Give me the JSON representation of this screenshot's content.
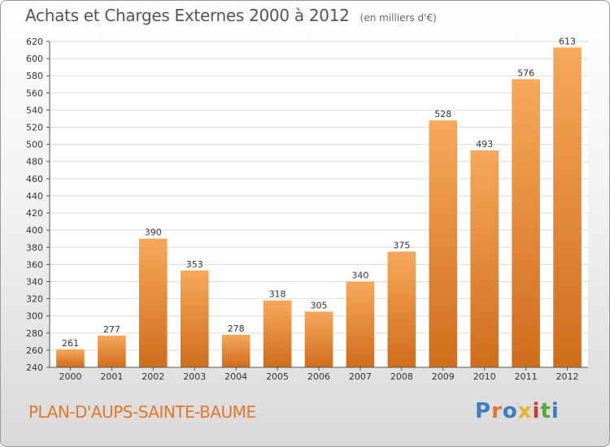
{
  "title": "Achats et Charges Externes 2000 à 2012",
  "subtitle": "(en milliers d'€)",
  "commune": "PLAN-D'AUPS-SAINTE-BAUME",
  "brand": "Proxiti",
  "colors": {
    "bar_light": "#f7a85a",
    "bar_dark": "#cf6d1c",
    "commune_text": "#e0782a"
  },
  "chart_data": {
    "type": "bar",
    "title": "Achats et Charges Externes 2000 à 2012",
    "subtitle": "(en milliers d'€)",
    "categories": [
      "2000",
      "2001",
      "2002",
      "2003",
      "2004",
      "2005",
      "2006",
      "2007",
      "2008",
      "2009",
      "2010",
      "2011",
      "2012"
    ],
    "values": [
      261,
      277,
      390,
      353,
      278,
      318,
      305,
      340,
      375,
      528,
      493,
      576,
      613
    ],
    "xlabel": "",
    "ylabel": "",
    "ylim": [
      240,
      620
    ],
    "yticks": [
      240,
      260,
      280,
      300,
      320,
      340,
      360,
      380,
      400,
      420,
      440,
      460,
      480,
      500,
      520,
      540,
      560,
      580,
      600,
      620
    ],
    "grid": true,
    "data_labels": true
  }
}
